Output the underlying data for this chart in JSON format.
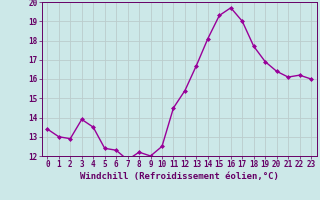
{
  "x": [
    0,
    1,
    2,
    3,
    4,
    5,
    6,
    7,
    8,
    9,
    10,
    11,
    12,
    13,
    14,
    15,
    16,
    17,
    18,
    19,
    20,
    21,
    22,
    23
  ],
  "y": [
    13.4,
    13.0,
    12.9,
    13.9,
    13.5,
    12.4,
    12.3,
    11.8,
    12.2,
    12.0,
    12.5,
    14.5,
    15.4,
    16.7,
    18.1,
    19.3,
    19.7,
    19.0,
    17.7,
    16.9,
    16.4,
    16.1,
    16.2,
    16.0
  ],
  "line_color": "#990099",
  "marker": "D",
  "marker_size": 2.0,
  "bg_color": "#cce8e8",
  "grid_color": "#bbcccc",
  "xlabel": "Windchill (Refroidissement éolien,°C)",
  "ylim": [
    12,
    20
  ],
  "xlim": [
    -0.5,
    23.5
  ],
  "yticks": [
    12,
    13,
    14,
    15,
    16,
    17,
    18,
    19,
    20
  ],
  "xticks": [
    0,
    1,
    2,
    3,
    4,
    5,
    6,
    7,
    8,
    9,
    10,
    11,
    12,
    13,
    14,
    15,
    16,
    17,
    18,
    19,
    20,
    21,
    22,
    23
  ],
  "tick_fontsize": 5.5,
  "xlabel_fontsize": 6.5,
  "line_width": 1.0
}
